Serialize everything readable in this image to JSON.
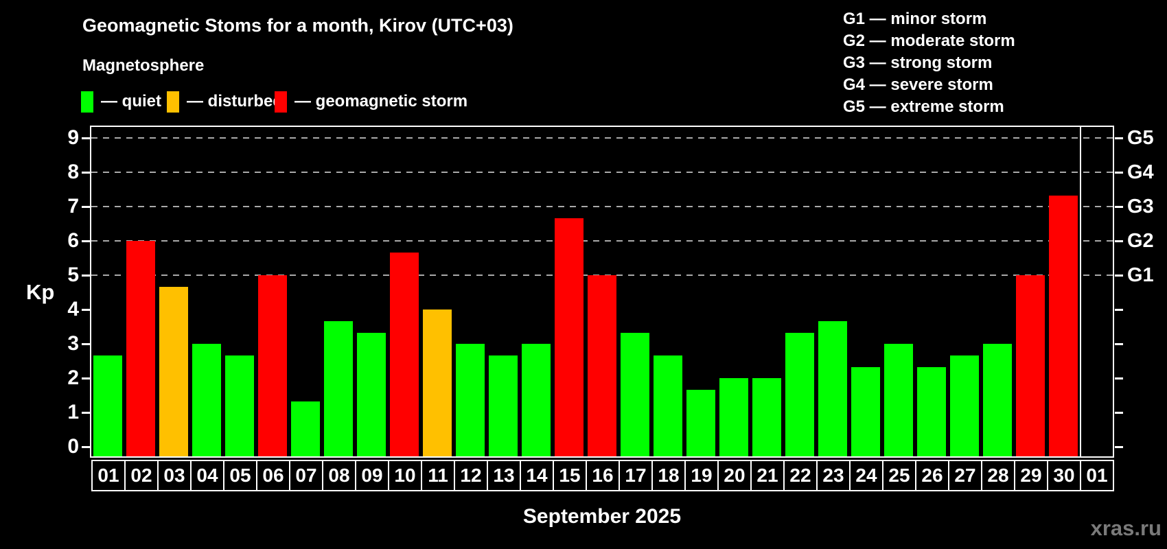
{
  "title": "Geomagnetic Stoms for a month, Kirov (UTC+03)",
  "subtitle": "Magnetosphere",
  "legend": {
    "items": [
      {
        "status": "quiet",
        "label": "— quiet",
        "color": "#00ff00"
      },
      {
        "status": "disturbed",
        "label": "— disturbed",
        "color": "#ffc000"
      },
      {
        "status": "storm",
        "label": "— geomagnetic storm",
        "color": "#ff0000"
      }
    ]
  },
  "g_legend": [
    "G1 — minor storm",
    "G2 — moderate storm",
    "G3 — strong storm",
    "G4 — severe storm",
    "G5 — extreme storm"
  ],
  "watermark": "xras.ru",
  "chart_data": {
    "type": "bar",
    "title": "Geomagnetic Stoms for a month, Kirov (UTC+03)",
    "xlabel": "September 2025",
    "ylabel": "Kp",
    "ylim": [
      0,
      9.35
    ],
    "yticks": [
      0,
      1,
      2,
      3,
      4,
      5,
      6,
      7,
      8,
      9
    ],
    "gridlines_at": [
      5,
      6,
      7,
      8,
      9
    ],
    "grid": "dashed",
    "legend_position": "top-left",
    "background": "#000000",
    "categories": [
      "01",
      "02",
      "03",
      "04",
      "05",
      "06",
      "07",
      "08",
      "09",
      "10",
      "11",
      "12",
      "13",
      "14",
      "15",
      "16",
      "17",
      "18",
      "19",
      "20",
      "21",
      "22",
      "23",
      "24",
      "25",
      "26",
      "27",
      "28",
      "29",
      "30"
    ],
    "values": [
      2.67,
      6.0,
      4.67,
      3.0,
      2.67,
      5.0,
      1.33,
      3.67,
      3.33,
      5.67,
      4.0,
      3.0,
      2.67,
      3.0,
      6.67,
      5.0,
      3.33,
      2.67,
      1.67,
      2.0,
      2.0,
      3.33,
      3.67,
      2.33,
      3.0,
      2.33,
      2.67,
      3.0,
      5.0,
      7.33
    ],
    "statuses": [
      "quiet",
      "storm",
      "disturbed",
      "quiet",
      "quiet",
      "storm",
      "quiet",
      "quiet",
      "quiet",
      "storm",
      "disturbed",
      "quiet",
      "quiet",
      "quiet",
      "storm",
      "storm",
      "quiet",
      "quiet",
      "quiet",
      "quiet",
      "quiet",
      "quiet",
      "quiet",
      "quiet",
      "quiet",
      "quiet",
      "quiet",
      "quiet",
      "storm",
      "storm"
    ],
    "extra_slot_label": "01",
    "right_axis_labels": [
      {
        "label": "G1",
        "kp": 5
      },
      {
        "label": "G2",
        "kp": 6
      },
      {
        "label": "G3",
        "kp": 7
      },
      {
        "label": "G4",
        "kp": 8
      },
      {
        "label": "G5",
        "kp": 9
      }
    ]
  }
}
